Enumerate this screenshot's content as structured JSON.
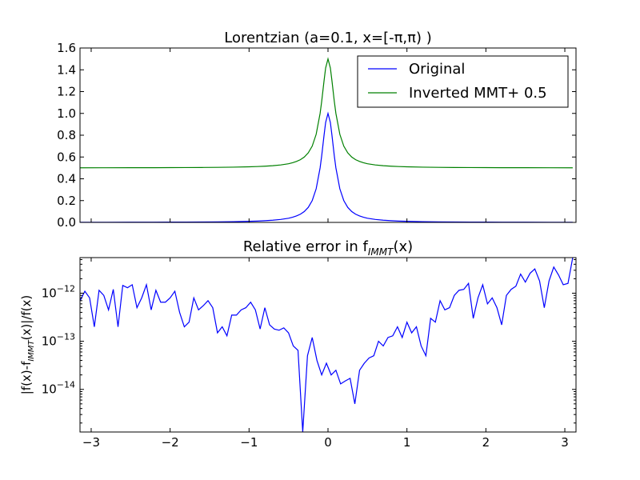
{
  "chart_data": [
    {
      "type": "line",
      "title": "Lorentzian (a=0.1, x=[-π,π) )",
      "xlim": [
        -3.14159,
        3.14159
      ],
      "ylim": [
        0.0,
        1.6
      ],
      "yticks": [
        "0.0",
        "0.2",
        "0.4",
        "0.6",
        "0.8",
        "1.0",
        "1.2",
        "1.4",
        "1.6"
      ],
      "ytick_values": [
        0.0,
        0.2,
        0.4,
        0.6,
        0.8,
        1.0,
        1.2,
        1.4,
        1.6
      ],
      "grid": false,
      "legend_position": "top-right",
      "series": [
        {
          "name": "Original",
          "color": "#0000ff",
          "x": [
            -3.14,
            -2.8,
            -2.5,
            -2.2,
            -2.0,
            -1.8,
            -1.6,
            -1.4,
            -1.2,
            -1.0,
            -0.9,
            -0.8,
            -0.7,
            -0.6,
            -0.5,
            -0.45,
            -0.4,
            -0.35,
            -0.3,
            -0.25,
            -0.2,
            -0.15,
            -0.1,
            -0.08,
            -0.05,
            -0.03,
            0.0,
            0.03,
            0.05,
            0.08,
            0.1,
            0.15,
            0.2,
            0.25,
            0.3,
            0.35,
            0.4,
            0.45,
            0.5,
            0.6,
            0.7,
            0.8,
            0.9,
            1.0,
            1.2,
            1.4,
            1.6,
            1.8,
            2.0,
            2.2,
            2.5,
            2.8,
            3.1
          ],
          "y": [
            0.001,
            0.0013,
            0.0016,
            0.002,
            0.0025,
            0.0031,
            0.0039,
            0.0051,
            0.0069,
            0.0099,
            0.0122,
            0.0154,
            0.02,
            0.027,
            0.038,
            0.047,
            0.059,
            0.075,
            0.1,
            0.138,
            0.2,
            0.308,
            0.5,
            0.61,
            0.8,
            0.917,
            1.0,
            0.917,
            0.8,
            0.61,
            0.5,
            0.308,
            0.2,
            0.138,
            0.1,
            0.075,
            0.059,
            0.047,
            0.038,
            0.027,
            0.02,
            0.0154,
            0.0122,
            0.0099,
            0.0069,
            0.0051,
            0.0039,
            0.0031,
            0.0025,
            0.002,
            0.0016,
            0.0013,
            0.001
          ]
        },
        {
          "name": "Inverted MMT+ 0.5",
          "color": "#008000",
          "offset": 0.5
        }
      ]
    },
    {
      "type": "line",
      "title_prefix": "Relative error in f",
      "title_sub": "IMMT",
      "title_suffix": "(x)",
      "ylabel_prefix": "|f(x)-f",
      "ylabel_sub": "IMMT",
      "ylabel_suffix": "(x)|/f(x)",
      "yscale": "log",
      "ylim": [
        1.3e-15,
        5.5e-12
      ],
      "yticks": [
        {
          "value": 1e-12,
          "base": "10",
          "exp": "−12"
        },
        {
          "value": 1e-13,
          "base": "10",
          "exp": "−13"
        },
        {
          "value": 1e-14,
          "base": "10",
          "exp": "−14"
        }
      ],
      "xlim": [
        -3.14159,
        3.14159
      ],
      "xticks": [
        "−3",
        "−2",
        "−1",
        "0",
        "1",
        "2",
        "3"
      ],
      "xtick_values": [
        -3,
        -2,
        -1,
        0,
        1,
        2,
        3
      ],
      "grid": false,
      "series": [
        {
          "name": "",
          "color": "#0000ff",
          "x": [
            -3.14,
            -3.08,
            -3.02,
            -2.96,
            -2.9,
            -2.84,
            -2.78,
            -2.72,
            -2.66,
            -2.6,
            -2.54,
            -2.48,
            -2.42,
            -2.36,
            -2.3,
            -2.24,
            -2.18,
            -2.12,
            -2.06,
            -2.0,
            -1.94,
            -1.88,
            -1.82,
            -1.76,
            -1.7,
            -1.64,
            -1.58,
            -1.52,
            -1.46,
            -1.4,
            -1.34,
            -1.28,
            -1.22,
            -1.16,
            -1.1,
            -1.04,
            -0.98,
            -0.92,
            -0.86,
            -0.8,
            -0.74,
            -0.68,
            -0.62,
            -0.56,
            -0.5,
            -0.44,
            -0.38,
            -0.32,
            -0.26,
            -0.2,
            -0.14,
            -0.08,
            -0.02,
            0.04,
            0.1,
            0.16,
            0.22,
            0.28,
            0.34,
            0.4,
            0.46,
            0.52,
            0.58,
            0.64,
            0.7,
            0.76,
            0.82,
            0.88,
            0.94,
            1.0,
            1.06,
            1.12,
            1.18,
            1.24,
            1.3,
            1.36,
            1.42,
            1.48,
            1.54,
            1.6,
            1.66,
            1.72,
            1.78,
            1.84,
            1.9,
            1.96,
            2.02,
            2.08,
            2.14,
            2.2,
            2.26,
            2.32,
            2.38,
            2.44,
            2.5,
            2.56,
            2.62,
            2.68,
            2.74,
            2.8,
            2.86,
            2.92,
            2.98,
            3.04,
            3.1
          ],
          "y": [
            7e-13,
            1.1e-12,
            8e-13,
            2e-13,
            1.15e-12,
            9e-13,
            4.5e-13,
            1.2e-12,
            2e-13,
            1.45e-12,
            1.3e-12,
            1.5e-12,
            5e-13,
            8e-13,
            1.5e-12,
            4.5e-13,
            1.15e-12,
            6.5e-13,
            6.5e-13,
            8e-13,
            1.1e-12,
            4e-13,
            2e-13,
            2.5e-13,
            8e-13,
            4.5e-13,
            5.5e-13,
            7e-13,
            5e-13,
            1.5e-13,
            2e-13,
            1.3e-13,
            3.5e-13,
            3.5e-13,
            4.5e-13,
            5e-13,
            6.5e-13,
            4.5e-13,
            1.8e-13,
            5e-13,
            2.2e-13,
            1.8e-13,
            1.7e-13,
            1.9e-13,
            1.5e-13,
            8e-14,
            6.5e-14,
            1.3e-15,
            5e-14,
            1.2e-13,
            4e-14,
            2e-14,
            3.5e-14,
            2e-14,
            2.5e-14,
            1.3e-14,
            1.5e-14,
            1.7e-14,
            5e-15,
            2.5e-14,
            3.5e-14,
            4.5e-14,
            5e-14,
            1e-13,
            8e-14,
            1.2e-13,
            1.3e-13,
            2e-13,
            1.2e-13,
            2.5e-13,
            1.5e-13,
            2e-13,
            8e-14,
            5e-14,
            3e-13,
            2.5e-13,
            7e-13,
            4.5e-13,
            5e-13,
            9e-13,
            1.15e-12,
            1.2e-12,
            1.6e-12,
            3e-13,
            8e-13,
            1.5e-12,
            6e-13,
            8e-13,
            5e-13,
            2.2e-13,
            9e-13,
            1.2e-12,
            1.4e-12,
            2.5e-12,
            1.7e-12,
            2.6e-12,
            3.2e-12,
            1.8e-12,
            5e-13,
            1.8e-12,
            3.5e-12,
            2.4e-12,
            1.5e-12,
            1.6e-12,
            5.5e-12
          ]
        }
      ]
    }
  ]
}
